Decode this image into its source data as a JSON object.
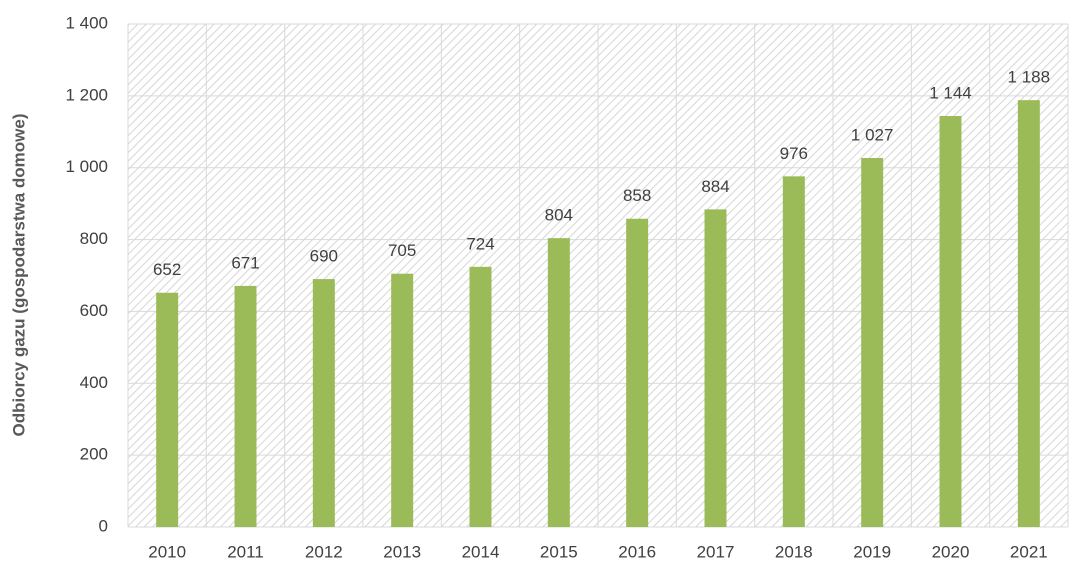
{
  "chart_data": {
    "type": "bar",
    "y_axis_label": "Odbiorcy gazu (gospodarstwa domowe)",
    "categories": [
      "2010",
      "2011",
      "2012",
      "2013",
      "2014",
      "2015",
      "2016",
      "2017",
      "2018",
      "2019",
      "2020",
      "2021"
    ],
    "values": [
      652,
      671,
      690,
      705,
      724,
      804,
      858,
      884,
      976,
      1027,
      1144,
      1188
    ],
    "value_labels": [
      "652",
      "671",
      "690",
      "705",
      "724",
      "804",
      "858",
      "884",
      "976",
      "1 027",
      "1 144",
      "1 188"
    ],
    "color": "#9bbb59",
    "ylim": [
      0,
      1400
    ],
    "yticks": [
      0,
      200,
      400,
      600,
      800,
      {
        "value": 1000,
        "label": "1 000"
      },
      {
        "value": 1200,
        "label": "1 200"
      },
      {
        "value": 1400,
        "label": "1 400"
      }
    ],
    "grid": true
  }
}
